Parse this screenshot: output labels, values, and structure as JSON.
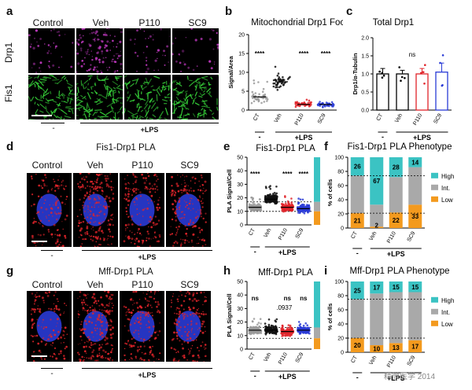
{
  "colors": {
    "magenta": "#c23ac2",
    "green": "#37d43a",
    "red": "#e0242a",
    "blue": "#2a3bd6",
    "teal": "#3bc3c3",
    "gray": "#a9a9a9",
    "orange": "#f39a1e",
    "veh_dot": "#111111",
    "ct_dot": "#9a9a9a"
  },
  "panel_letters": {
    "a": "a",
    "b": "b",
    "c": "c",
    "d": "d",
    "e": "e",
    "f": "f",
    "g": "g",
    "h": "h",
    "i": "i"
  },
  "panel_a": {
    "conditions": [
      "Control",
      "Veh",
      "P110",
      "SC9"
    ],
    "row_labels": [
      "Drp1",
      "Fis1"
    ],
    "minus": "-",
    "plus_lps": "+LPS"
  },
  "panel_d": {
    "title": "Fis1-Drp1 PLA",
    "conditions": [
      "Control",
      "Veh",
      "P110",
      "SC9"
    ],
    "minus": "-",
    "plus_lps": "+LPS"
  },
  "panel_g": {
    "title": "Mff-Drp1 PLA",
    "conditions": [
      "Control",
      "Veh",
      "P110",
      "SC9"
    ],
    "minus": "-",
    "plus_lps": "+LPS"
  },
  "chart_data": [
    {
      "id": "b",
      "type": "scatter",
      "title": "Mitochondrial Drp1 Foci",
      "ylabel": "Signal/Area",
      "ylim": [
        0,
        20
      ],
      "yticks": [
        0,
        5,
        10,
        15,
        20
      ],
      "categories": [
        "CT",
        "Veh",
        "P110",
        "SC9"
      ],
      "means": [
        3.5,
        7.5,
        1.5,
        1.5
      ],
      "sig": [
        "****",
        "",
        "****",
        "****"
      ],
      "minus": "-",
      "plus_lps": "+LPS"
    },
    {
      "id": "c",
      "type": "bar",
      "title": "Total Drp1",
      "ylabel": "Drp1/α-Tubulin",
      "ylim": [
        0,
        2.0
      ],
      "yticks": [
        "0.0",
        "0.5",
        "1.0",
        "1.5",
        "2.0"
      ],
      "categories": [
        "CT",
        "Veh",
        "P110",
        "SC9"
      ],
      "values": [
        1.0,
        1.0,
        1.0,
        1.05
      ],
      "errors": [
        0.15,
        0.1,
        0.15,
        0.25
      ],
      "sig_text": "ns",
      "minus": "-",
      "plus_lps": "+LPS"
    },
    {
      "id": "e",
      "type": "scatter",
      "title": "Fis1-Drp1 PLA",
      "ylabel": "PLA Signal/Cell",
      "ylim": [
        0,
        50
      ],
      "yticks": [
        0,
        10,
        20,
        30,
        40,
        50
      ],
      "categories": [
        "CT",
        "Veh",
        "P110",
        "SC9"
      ],
      "means": [
        13,
        19,
        13,
        12
      ],
      "thresholds": [
        10,
        17
      ],
      "sig": [
        "****",
        "",
        "****",
        "****"
      ],
      "stack": {
        "high_top": 50,
        "high_bottom": 17,
        "low_top": 10
      },
      "minus": "-",
      "plus_lps": "+LPS"
    },
    {
      "id": "f",
      "type": "bar",
      "title": "Fis1-Drp1 PLA Phenotype",
      "ylabel": "% of cells",
      "ylim": [
        0,
        100
      ],
      "yticks": [
        0,
        20,
        40,
        60,
        80,
        100
      ],
      "categories": [
        "CT",
        "Veh",
        "P110",
        "SC9"
      ],
      "series": [
        {
          "name": "Low",
          "values": [
            21,
            2,
            22,
            33
          ]
        },
        {
          "name": "Int.",
          "values": [
            53,
            31,
            50,
            53
          ]
        },
        {
          "name": "High",
          "values": [
            26,
            67,
            28,
            14
          ]
        }
      ],
      "labels": {
        "High": [
          "26",
          "67",
          "28",
          "14"
        ],
        "Low": [
          "21",
          "2",
          "22",
          "33"
        ]
      },
      "ref_lines": [
        21,
        74
      ],
      "legend": [
        "High",
        "Int.",
        "Low"
      ],
      "minus": "-",
      "plus_lps": "+LPS"
    },
    {
      "id": "h",
      "type": "scatter",
      "title": "Mff-Drp1 PLA",
      "ylabel": "PLA Signal/Cell",
      "ylim": [
        0,
        50
      ],
      "yticks": [
        0,
        10,
        20,
        30,
        40,
        50
      ],
      "categories": [
        "CT",
        "Veh",
        "P110",
        "SC9"
      ],
      "means": [
        14,
        14,
        13,
        14
      ],
      "thresholds": [
        8,
        16
      ],
      "sig": [
        "ns",
        "",
        "ns",
        "ns"
      ],
      "extra_label": ".0937",
      "stack": {
        "high_top": 50,
        "high_bottom": 16,
        "low_top": 8
      },
      "minus": "-",
      "plus_lps": "+LPS"
    },
    {
      "id": "i",
      "type": "bar",
      "title": "Mff-Drp1 PLA Phenotype",
      "ylabel": "% of cells",
      "ylim": [
        0,
        100
      ],
      "yticks": [
        0,
        20,
        40,
        60,
        80,
        100
      ],
      "categories": [
        "CT",
        "Veh",
        "P110",
        "SC9"
      ],
      "series": [
        {
          "name": "Low",
          "values": [
            20,
            10,
            13,
            17
          ]
        },
        {
          "name": "Int.",
          "values": [
            55,
            73,
            72,
            68
          ]
        },
        {
          "name": "High",
          "values": [
            25,
            17,
            15,
            15
          ]
        }
      ],
      "labels": {
        "High": [
          "25",
          "17",
          "15",
          "15"
        ],
        "Low": [
          "20",
          "10",
          "13",
          "17"
        ]
      },
      "ref_lines": [
        20,
        75
      ],
      "legend": [
        "High",
        "Int.",
        "Low"
      ],
      "minus": "-",
      "plus_lps": "+LPS"
    }
  ],
  "watermark": "精微医学 2014"
}
